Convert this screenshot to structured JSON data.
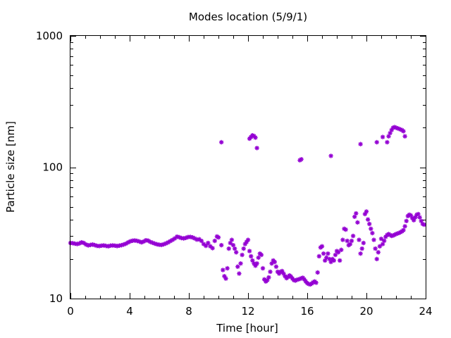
{
  "chart_data": {
    "type": "scatter",
    "title": "Modes location (5/9/1)",
    "xlabel": "Time [hour]",
    "ylabel": "Particle size [nm]",
    "xlim": [
      0,
      24
    ],
    "ylim": [
      10,
      1000
    ],
    "yscale": "log",
    "grid": false,
    "legend": "none",
    "xticks": [
      0,
      4,
      8,
      12,
      16,
      20,
      24
    ],
    "xtick_labels": [
      "0",
      "4",
      "8",
      "12",
      "16",
      "20",
      "24"
    ],
    "yticks": [
      10,
      100,
      1000
    ],
    "ytick_labels": [
      "10",
      "100",
      "1000"
    ],
    "marker_color": "#9400d3",
    "marker": "asterisk",
    "series": [
      {
        "points": [
          [
            0.0,
            26.5
          ],
          [
            0.15,
            26.4
          ],
          [
            0.3,
            26.2
          ],
          [
            0.45,
            26.0
          ],
          [
            0.6,
            26.3
          ],
          [
            0.75,
            26.8
          ],
          [
            0.9,
            26.5
          ],
          [
            1.05,
            25.8
          ],
          [
            1.2,
            25.4
          ],
          [
            1.35,
            25.6
          ],
          [
            1.5,
            25.8
          ],
          [
            1.65,
            25.5
          ],
          [
            1.8,
            25.2
          ],
          [
            1.95,
            25.1
          ],
          [
            2.1,
            25.3
          ],
          [
            2.25,
            25.4
          ],
          [
            2.4,
            25.2
          ],
          [
            2.55,
            25.0
          ],
          [
            2.7,
            25.3
          ],
          [
            2.85,
            25.4
          ],
          [
            3.0,
            25.3
          ],
          [
            3.15,
            25.1
          ],
          [
            3.3,
            25.3
          ],
          [
            3.45,
            25.5
          ],
          [
            3.6,
            25.8
          ],
          [
            3.75,
            26.2
          ],
          [
            3.9,
            26.8
          ],
          [
            4.05,
            27.3
          ],
          [
            4.2,
            27.6
          ],
          [
            4.35,
            27.7
          ],
          [
            4.5,
            27.5
          ],
          [
            4.65,
            27.2
          ],
          [
            4.8,
            26.8
          ],
          [
            4.95,
            27.2
          ],
          [
            5.1,
            27.8
          ],
          [
            5.25,
            27.6
          ],
          [
            5.4,
            27.0
          ],
          [
            5.55,
            26.6
          ],
          [
            5.7,
            26.2
          ],
          [
            5.85,
            25.9
          ],
          [
            6.0,
            25.7
          ],
          [
            6.15,
            25.6
          ],
          [
            6.3,
            25.9
          ],
          [
            6.45,
            26.3
          ],
          [
            6.6,
            26.8
          ],
          [
            6.75,
            27.4
          ],
          [
            6.9,
            28.0
          ],
          [
            7.05,
            28.7
          ],
          [
            7.2,
            29.6
          ],
          [
            7.35,
            29.3
          ],
          [
            7.5,
            28.9
          ],
          [
            7.65,
            28.7
          ],
          [
            7.8,
            29.0
          ],
          [
            7.95,
            29.4
          ],
          [
            8.1,
            29.5
          ],
          [
            8.25,
            29.2
          ],
          [
            8.4,
            28.7
          ],
          [
            8.55,
            28.1
          ],
          [
            8.7,
            28.3
          ],
          [
            8.85,
            27.5
          ],
          [
            9.0,
            26.0
          ],
          [
            9.15,
            25.2
          ],
          [
            9.3,
            26.5
          ],
          [
            9.45,
            25.0
          ],
          [
            9.6,
            24.2
          ],
          [
            9.75,
            27.5
          ],
          [
            9.9,
            29.7
          ],
          [
            10.0,
            29.2
          ],
          [
            10.2,
            25.5
          ],
          [
            10.3,
            16.5
          ],
          [
            10.4,
            14.8
          ],
          [
            10.5,
            14.2
          ],
          [
            10.6,
            17.0
          ],
          [
            10.7,
            24.0
          ],
          [
            10.8,
            26.5
          ],
          [
            10.9,
            28.0
          ],
          [
            11.0,
            25.5
          ],
          [
            11.1,
            24.0
          ],
          [
            11.2,
            22.5
          ],
          [
            11.3,
            17.5
          ],
          [
            11.4,
            15.5
          ],
          [
            11.5,
            18.5
          ],
          [
            11.6,
            21.5
          ],
          [
            11.7,
            24.0
          ],
          [
            11.8,
            26.0
          ],
          [
            11.9,
            27.0
          ],
          [
            12.0,
            28.0
          ],
          [
            12.1,
            23.0
          ],
          [
            12.2,
            21.0
          ],
          [
            12.3,
            19.5
          ],
          [
            12.4,
            18.5
          ],
          [
            12.5,
            17.8
          ],
          [
            12.6,
            18.5
          ],
          [
            12.7,
            20.5
          ],
          [
            12.8,
            22.0
          ],
          [
            12.9,
            21.5
          ],
          [
            13.0,
            17.0
          ],
          [
            13.1,
            14.0
          ],
          [
            13.2,
            13.5
          ],
          [
            13.3,
            13.8
          ],
          [
            13.4,
            14.5
          ],
          [
            13.5,
            16.0
          ],
          [
            13.6,
            18.5
          ],
          [
            13.7,
            19.5
          ],
          [
            13.8,
            19.0
          ],
          [
            13.9,
            17.5
          ],
          [
            14.0,
            16.0
          ],
          [
            14.1,
            15.5
          ],
          [
            14.2,
            16.0
          ],
          [
            14.3,
            16.2
          ],
          [
            14.4,
            15.5
          ],
          [
            14.5,
            14.8
          ],
          [
            14.6,
            14.3
          ],
          [
            14.7,
            14.6
          ],
          [
            14.8,
            15.0
          ],
          [
            14.9,
            14.7
          ],
          [
            15.0,
            14.2
          ],
          [
            15.1,
            13.8
          ],
          [
            15.2,
            13.7
          ],
          [
            15.3,
            13.9
          ],
          [
            15.4,
            14.0
          ],
          [
            15.5,
            14.1
          ],
          [
            15.6,
            14.3
          ],
          [
            15.7,
            14.4
          ],
          [
            15.8,
            14.0
          ],
          [
            15.9,
            13.5
          ],
          [
            16.0,
            13.1
          ],
          [
            16.1,
            12.9
          ],
          [
            16.2,
            12.8
          ],
          [
            16.3,
            13.0
          ],
          [
            16.4,
            13.3
          ],
          [
            16.5,
            13.5
          ],
          [
            16.6,
            13.2
          ],
          [
            16.7,
            15.8
          ],
          [
            16.8,
            21.0
          ],
          [
            16.9,
            24.5
          ],
          [
            17.0,
            25.0
          ],
          [
            17.1,
            22.0
          ],
          [
            17.2,
            19.5
          ],
          [
            17.3,
            20.5
          ],
          [
            17.4,
            22.0
          ],
          [
            17.5,
            20.0
          ],
          [
            17.6,
            19.0
          ],
          [
            17.7,
            20.0
          ],
          [
            17.8,
            19.5
          ],
          [
            17.9,
            21.5
          ],
          [
            18.0,
            23.0
          ],
          [
            18.1,
            22.5
          ],
          [
            18.2,
            19.5
          ],
          [
            18.3,
            23.5
          ],
          [
            18.4,
            28.0
          ],
          [
            18.5,
            34.0
          ],
          [
            18.6,
            33.5
          ],
          [
            18.7,
            27.5
          ],
          [
            18.8,
            25.5
          ],
          [
            18.9,
            26.0
          ],
          [
            19.0,
            27.5
          ],
          [
            19.1,
            30.0
          ],
          [
            19.2,
            42.0
          ],
          [
            19.3,
            44.5
          ],
          [
            19.4,
            38.0
          ],
          [
            19.5,
            28.0
          ],
          [
            19.6,
            22.0
          ],
          [
            19.7,
            24.0
          ],
          [
            19.8,
            26.5
          ],
          [
            19.9,
            44.0
          ],
          [
            20.0,
            46.0
          ],
          [
            20.1,
            40.0
          ],
          [
            20.2,
            37.0
          ],
          [
            20.3,
            34.0
          ],
          [
            20.4,
            31.5
          ],
          [
            20.5,
            28.0
          ],
          [
            20.6,
            24.0
          ],
          [
            20.7,
            20.0
          ],
          [
            20.8,
            22.5
          ],
          [
            20.9,
            25.0
          ],
          [
            21.0,
            28.5
          ],
          [
            21.1,
            26.0
          ],
          [
            21.2,
            27.5
          ],
          [
            21.3,
            29.5
          ],
          [
            21.4,
            30.5
          ],
          [
            21.5,
            31.0
          ],
          [
            21.6,
            30.5
          ],
          [
            21.7,
            30.0
          ],
          [
            21.8,
            30.2
          ],
          [
            21.9,
            30.6
          ],
          [
            22.0,
            31.0
          ],
          [
            22.1,
            31.3
          ],
          [
            22.2,
            31.6
          ],
          [
            22.3,
            32.0
          ],
          [
            22.4,
            32.5
          ],
          [
            22.5,
            33.2
          ],
          [
            22.6,
            35.5
          ],
          [
            22.7,
            39.0
          ],
          [
            22.8,
            42.5
          ],
          [
            22.9,
            43.5
          ],
          [
            23.0,
            43.0
          ],
          [
            23.1,
            41.0
          ],
          [
            23.2,
            39.5
          ],
          [
            23.3,
            41.5
          ],
          [
            23.4,
            43.5
          ],
          [
            23.5,
            44.0
          ],
          [
            23.6,
            41.5
          ],
          [
            23.7,
            39.0
          ],
          [
            23.8,
            37.0
          ],
          [
            23.9,
            36.5
          ]
        ]
      },
      {
        "points": [
          [
            10.2,
            155
          ],
          [
            12.1,
            165
          ],
          [
            12.2,
            170
          ],
          [
            12.3,
            175
          ],
          [
            12.4,
            173
          ],
          [
            12.5,
            168
          ],
          [
            12.6,
            140
          ],
          [
            15.5,
            113
          ],
          [
            15.6,
            115
          ],
          [
            17.6,
            122
          ],
          [
            19.6,
            150
          ],
          [
            20.7,
            155
          ],
          [
            21.1,
            170
          ],
          [
            21.4,
            155
          ],
          [
            21.5,
            172
          ],
          [
            21.6,
            182
          ],
          [
            21.7,
            192
          ],
          [
            21.8,
            200
          ],
          [
            21.9,
            202
          ],
          [
            22.0,
            200
          ],
          [
            22.1,
            198
          ],
          [
            22.2,
            196
          ],
          [
            22.3,
            194
          ],
          [
            22.4,
            192
          ],
          [
            22.5,
            188
          ],
          [
            22.6,
            172
          ]
        ]
      }
    ]
  }
}
